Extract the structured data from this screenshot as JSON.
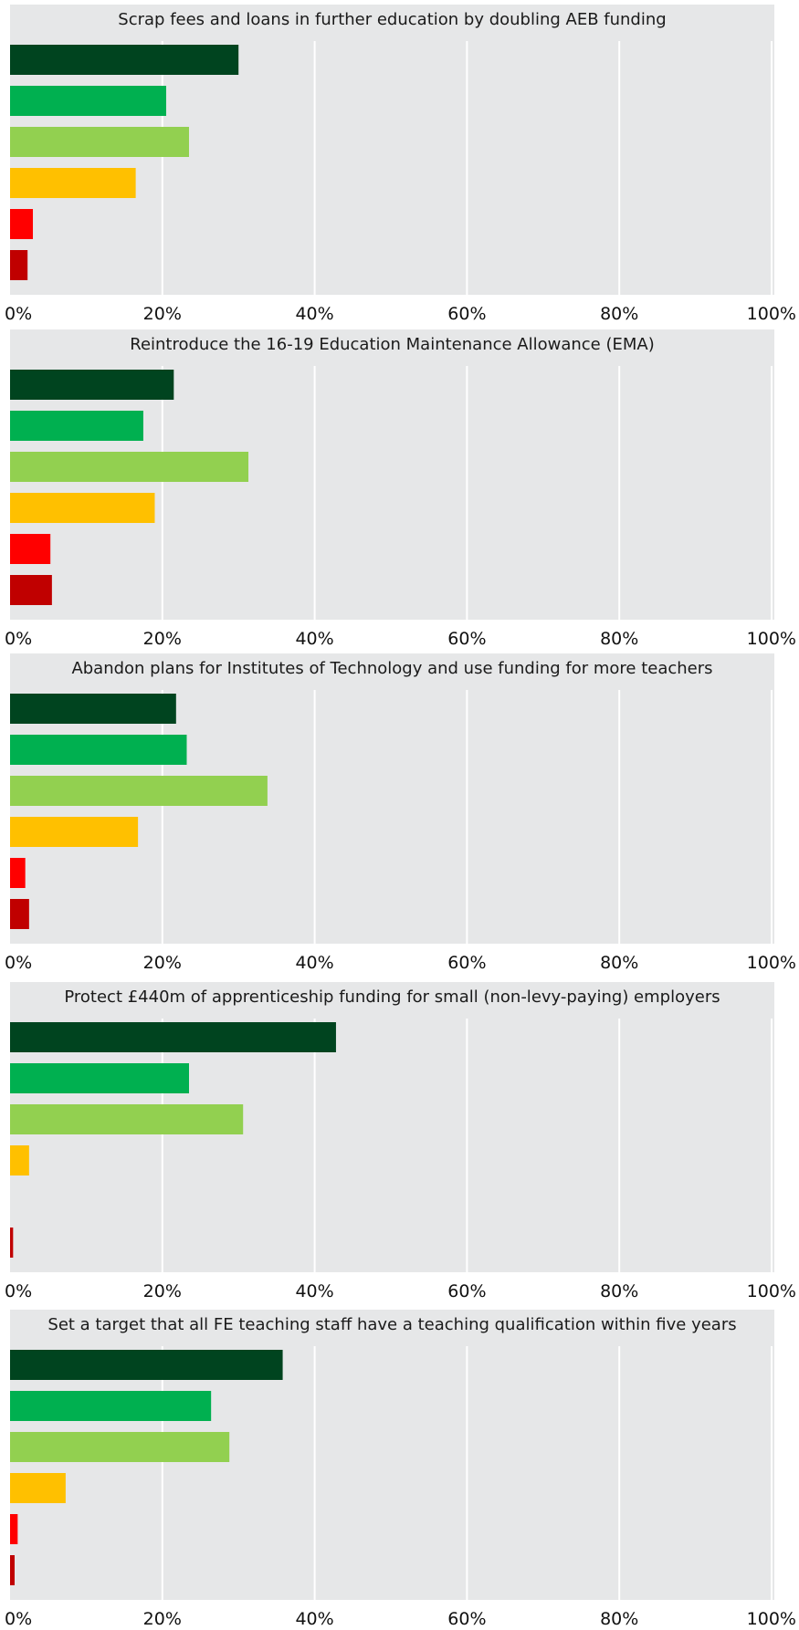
{
  "chart_data": [
    {
      "type": "bar",
      "orientation": "horizontal",
      "title": "Scrap fees and loans in further education by doubling AEB funding",
      "x_ticks": [
        "0%",
        "20%",
        "40%",
        "60%",
        "80%",
        "100%"
      ],
      "xlim": [
        0,
        100
      ],
      "grid": true,
      "values": [
        30,
        20.5,
        23.5,
        16.5,
        3,
        2.3
      ]
    },
    {
      "type": "bar",
      "orientation": "horizontal",
      "title": "Reintroduce the 16-19 Education Maintenance Allowance (EMA)",
      "x_ticks": [
        "0%",
        "20%",
        "40%",
        "60%",
        "80%",
        "100%"
      ],
      "xlim": [
        0,
        100
      ],
      "grid": true,
      "values": [
        21.5,
        17.5,
        31.3,
        19,
        5.3,
        5.5
      ]
    },
    {
      "type": "bar",
      "orientation": "horizontal",
      "title": "Abandon plans for Institutes of Technology and use funding for more teachers",
      "x_ticks": [
        "0%",
        "20%",
        "40%",
        "60%",
        "80%",
        "100%"
      ],
      "xlim": [
        0,
        100
      ],
      "grid": true,
      "values": [
        21.8,
        23.2,
        33.8,
        16.8,
        2,
        2.5
      ]
    },
    {
      "type": "bar",
      "orientation": "horizontal",
      "title": "Protect £440m of apprenticeship funding for small (non-levy-paying) employers",
      "x_ticks": [
        "0%",
        "20%",
        "40%",
        "60%",
        "80%",
        "100%"
      ],
      "xlim": [
        0,
        100
      ],
      "grid": true,
      "values": [
        42.8,
        23.5,
        30.6,
        2.5,
        0,
        0.4
      ]
    },
    {
      "type": "bar",
      "orientation": "horizontal",
      "title": "Set a target that all FE teaching staff have a teaching qualification within five years",
      "x_ticks": [
        "0%",
        "20%",
        "40%",
        "60%",
        "80%",
        "100%"
      ],
      "xlim": [
        0,
        100
      ],
      "grid": true,
      "values": [
        35.8,
        26.4,
        28.8,
        7.3,
        1,
        0.6
      ]
    }
  ],
  "colors": {
    "panel_background": "#e6e7e8",
    "gridline": "#ffffff",
    "bar_colors": [
      "#00441f",
      "#00b050",
      "#92d050",
      "#ffc000",
      "#ff0000",
      "#c00000"
    ]
  }
}
